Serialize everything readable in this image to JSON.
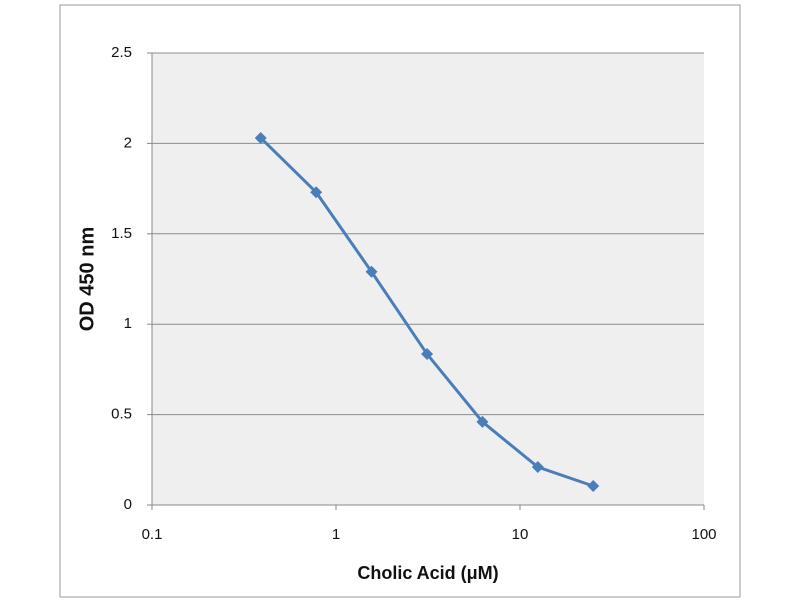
{
  "chart_data": {
    "type": "line",
    "x_label": "Cholic Acid (μM)",
    "y_label": "OD 450 nm",
    "x": [
      0.39,
      0.78,
      1.56,
      3.125,
      6.25,
      12.5,
      25
    ],
    "series": [
      {
        "color": "#4a7ebb",
        "values": [
          2.03,
          1.73,
          1.29,
          0.835,
          0.46,
          0.21,
          0.105
        ]
      }
    ],
    "xscale": "log",
    "xlim": [
      0.1,
      100
    ],
    "xticks": [
      0.1,
      1,
      10,
      100
    ],
    "ylim": [
      0,
      2.5
    ],
    "yticks": [
      0,
      0.5,
      1,
      1.5,
      2,
      2.5
    ],
    "grid": true
  }
}
